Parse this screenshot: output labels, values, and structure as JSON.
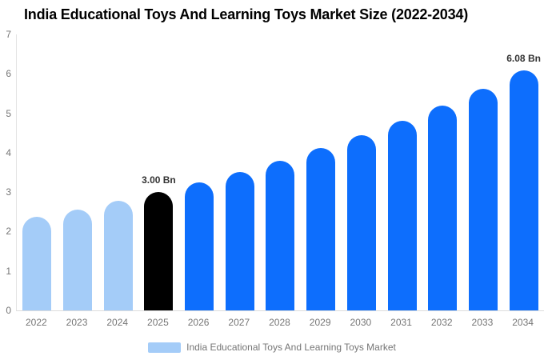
{
  "title": "India Educational Toys And Learning Toys Market Size (2022-2034)",
  "chart_data": {
    "type": "bar",
    "categories": [
      "2022",
      "2023",
      "2024",
      "2025",
      "2026",
      "2027",
      "2028",
      "2029",
      "2030",
      "2031",
      "2032",
      "2033",
      "2034"
    ],
    "values": [
      2.37,
      2.56,
      2.77,
      3.0,
      3.25,
      3.51,
      3.8,
      4.11,
      4.44,
      4.81,
      5.2,
      5.62,
      6.08
    ],
    "unit": "Bn",
    "title": "India Educational Toys And Learning Toys Market Size (2022-2034)",
    "xlabel": "",
    "ylabel": "",
    "ylim": [
      0,
      7
    ],
    "yticks": [
      0,
      1,
      2,
      3,
      4,
      5,
      6,
      7
    ],
    "grid": false,
    "legend_position": "bottom",
    "bar_colors": [
      "#a4ccf8",
      "#a4ccf8",
      "#a4ccf8",
      "#000000",
      "#0d6efd",
      "#0d6efd",
      "#0d6efd",
      "#0d6efd",
      "#0d6efd",
      "#0d6efd",
      "#0d6efd",
      "#0d6efd",
      "#0d6efd"
    ],
    "annotations": [
      {
        "category": "2025",
        "text": "3.00 Bn"
      },
      {
        "category": "2034",
        "text": "6.08 Bn"
      }
    ],
    "legend": {
      "label": "India Educational Toys And Learning Toys Market",
      "swatch_color": "#a4ccf8"
    }
  },
  "colors": {
    "historical_bar": "#a4ccf8",
    "highlight_bar": "#000000",
    "forecast_bar": "#0d6efd",
    "axis_text": "#757575",
    "axis_line": "#dcdcdc",
    "data_label": "#333333",
    "title_text": "#000000",
    "background": "#ffffff"
  }
}
